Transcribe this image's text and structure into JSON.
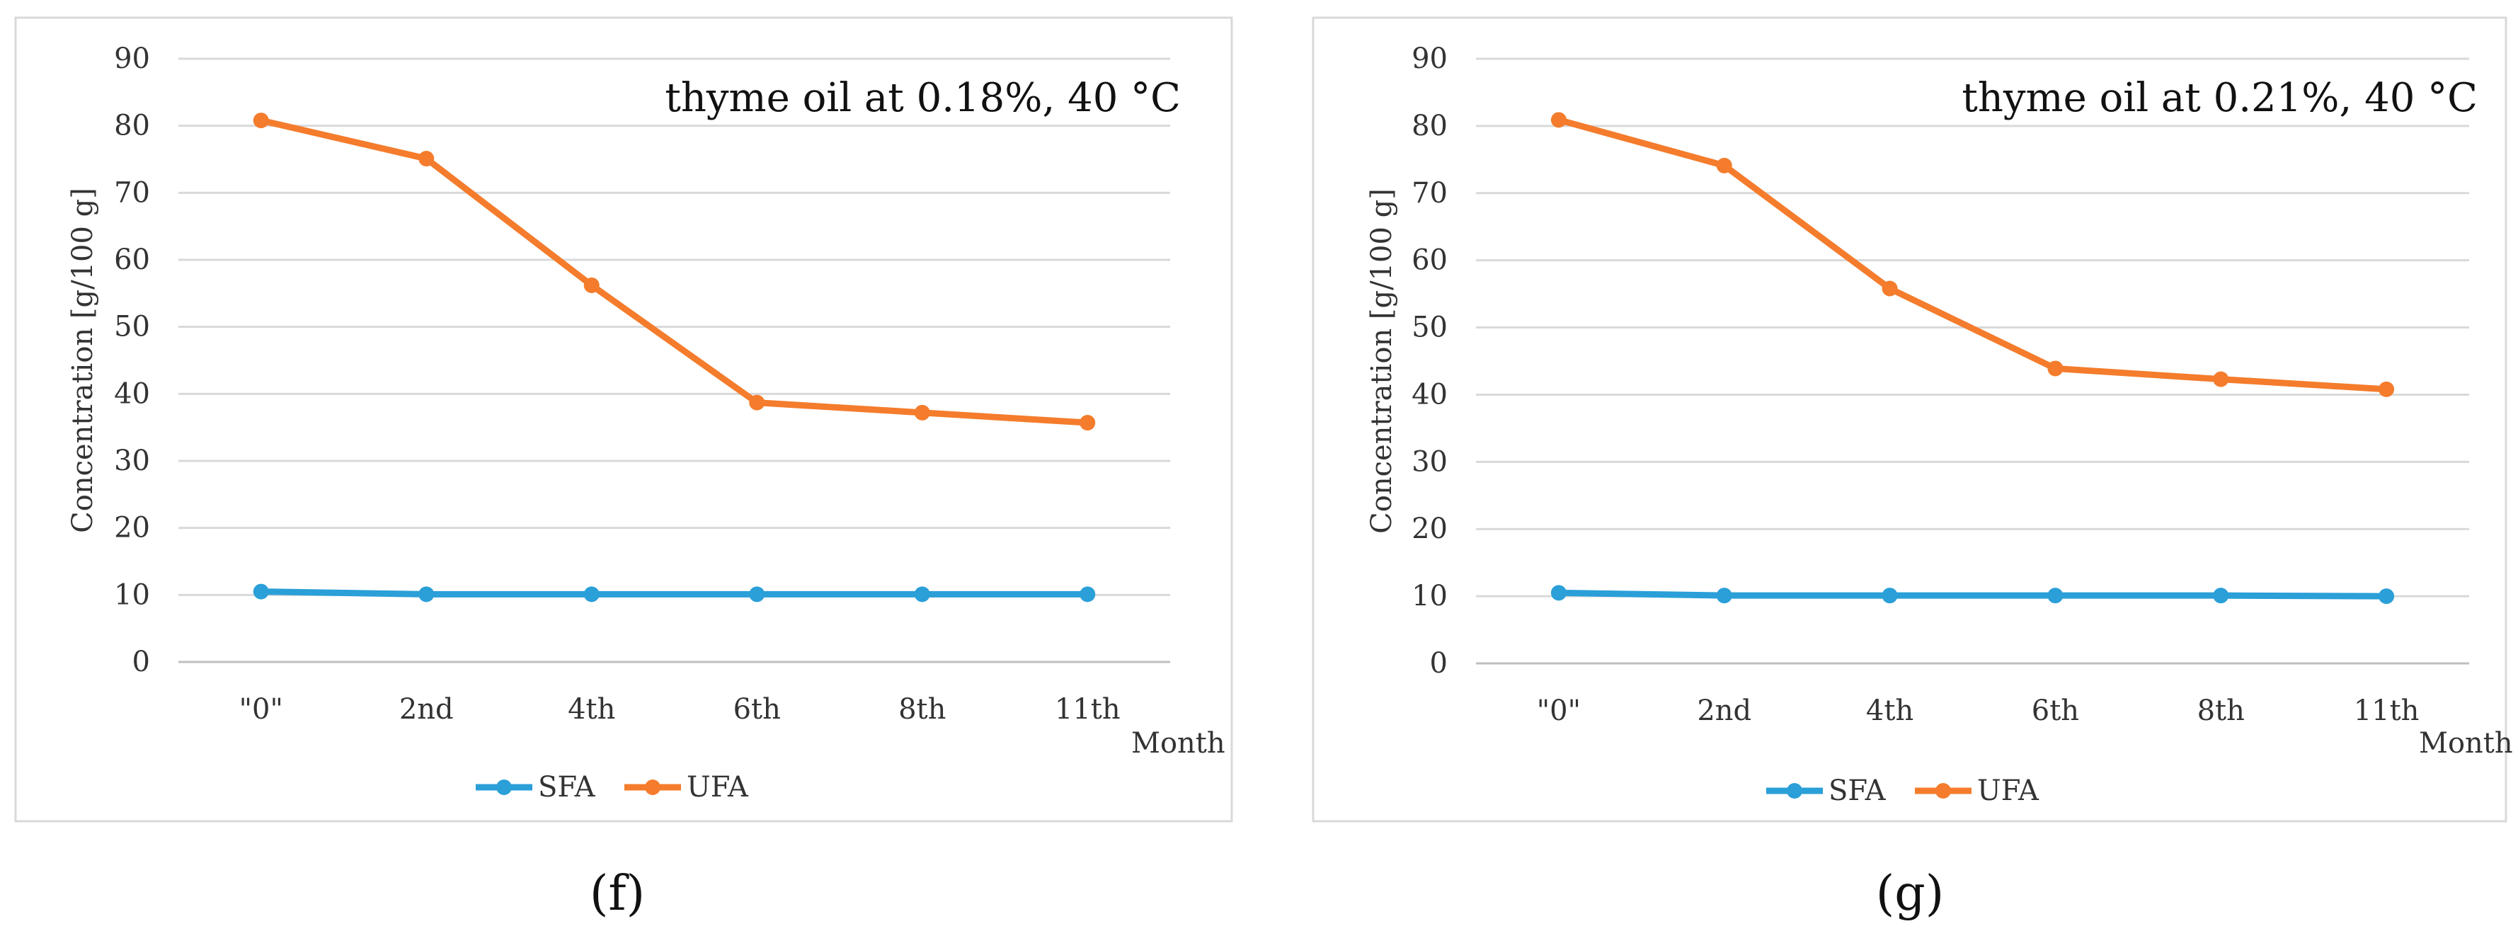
{
  "chart_data": [
    {
      "type": "line",
      "panel_label": "(f)",
      "annotation": "thyme oil at 0.18%, 40 °C",
      "ylabel": "Concentration [g/100 g]",
      "xlabel": "Month",
      "ylim": [
        0,
        90
      ],
      "yticks": [
        "0",
        "10",
        "20",
        "30",
        "40",
        "50",
        "60",
        "70",
        "80",
        "90"
      ],
      "categories": [
        "\"0\"",
        "2nd",
        "4th",
        "6th",
        "8th",
        "11th"
      ],
      "series": [
        {
          "name": "SFA",
          "color": "#2a9fd8",
          "values": [
            10.5,
            10.1,
            10.1,
            10.1,
            10.1,
            10.1
          ]
        },
        {
          "name": "UFA",
          "color": "#f47c2c",
          "values": [
            80.8,
            75.1,
            56.2,
            38.7,
            37.2,
            35.7
          ]
        }
      ]
    },
    {
      "type": "line",
      "panel_label": "(g)",
      "annotation": "thyme oil at 0.21%, 40 °C",
      "ylabel": "Concentration [g/100 g]",
      "xlabel": "Month",
      "ylim": [
        0,
        90
      ],
      "yticks": [
        "0",
        "10",
        "20",
        "30",
        "40",
        "50",
        "60",
        "70",
        "80",
        "90"
      ],
      "categories": [
        "\"0\"",
        "2nd",
        "4th",
        "6th",
        "8th",
        "11th"
      ],
      "series": [
        {
          "name": "SFA",
          "color": "#2a9fd8",
          "values": [
            10.5,
            10.1,
            10.1,
            10.1,
            10.1,
            10.0
          ]
        },
        {
          "name": "UFA",
          "color": "#f47c2c",
          "values": [
            80.9,
            74.1,
            55.8,
            43.9,
            42.3,
            40.8
          ]
        }
      ]
    }
  ]
}
